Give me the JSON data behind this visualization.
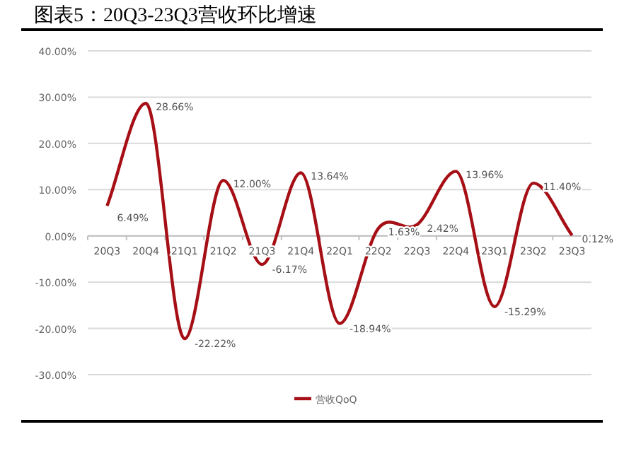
{
  "chart_data": {
    "type": "line",
    "title": "图表5：20Q3-23Q3营收环比增速",
    "categories": [
      "20Q3",
      "20Q4",
      "21Q1",
      "21Q2",
      "21Q3",
      "21Q4",
      "22Q1",
      "22Q2",
      "22Q3",
      "22Q4",
      "23Q1",
      "23Q2",
      "23Q3"
    ],
    "series": [
      {
        "name": "营收QoQ",
        "color": "#a50f15",
        "values": [
          6.49,
          28.66,
          -22.22,
          12.0,
          -6.17,
          13.64,
          -18.94,
          1.63,
          2.42,
          13.96,
          -15.29,
          11.4,
          0.12
        ],
        "value_labels": [
          "6.49%",
          "28.66%",
          "-22.22%",
          "12.00%",
          "-6.17%",
          "13.64%",
          "-18.94%",
          "1.63%",
          "2.42%",
          "13.96%",
          "-15.29%",
          "11.40%",
          "0.12%"
        ]
      }
    ],
    "ylim": [
      -30,
      40
    ],
    "yticks": [
      {
        "value": 40,
        "label": "40.00%"
      },
      {
        "value": 30,
        "label": "30.00%"
      },
      {
        "value": 20,
        "label": "20.00%"
      },
      {
        "value": 10,
        "label": "10.00%"
      },
      {
        "value": 0,
        "label": "0.00%"
      },
      {
        "value": -10,
        "label": "-10.00%"
      },
      {
        "value": -20,
        "label": "-20.00%"
      },
      {
        "value": -30,
        "label": "-30.00%"
      }
    ],
    "grid": "y",
    "legend": "bottom",
    "marker": "none",
    "line_style": "solid"
  }
}
